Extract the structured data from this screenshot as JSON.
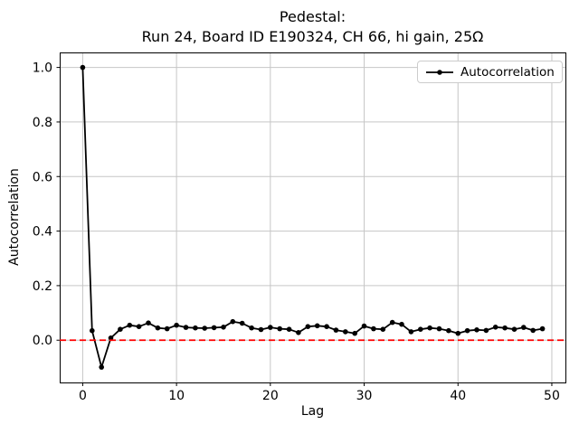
{
  "title": {
    "line1": "Pedestal:",
    "line2": "Run 24, Board ID E190324, CH 66, hi gain, 25Ω"
  },
  "colors": {
    "grid": "#c6c6c6",
    "axis": "#000000",
    "series": "#000000",
    "reference": "#ff0000",
    "legend_border": "#cccccc",
    "background": "#ffffff"
  },
  "chart_data": {
    "type": "line",
    "title": "Pedestal:\nRun 24, Board ID E190324, CH 66, hi gain, 25Ω",
    "xlabel": "Lag",
    "ylabel": "Autocorrelation",
    "xlim": [
      -2.45,
      51.45
    ],
    "ylim": [
      -0.155,
      1.055
    ],
    "x_ticks": [
      0,
      10,
      20,
      30,
      40,
      50
    ],
    "y_ticks": [
      0.0,
      0.2,
      0.4,
      0.6,
      0.8,
      1.0
    ],
    "grid": true,
    "legend": {
      "position": "upper right",
      "entries": [
        "Autocorrelation"
      ]
    },
    "reference_line": {
      "y": 0.0,
      "color": "#ff0000",
      "style": "dashed"
    },
    "series": [
      {
        "name": "Autocorrelation",
        "color": "#000000",
        "marker": "dot",
        "x": [
          0,
          1,
          2,
          3,
          4,
          5,
          6,
          7,
          8,
          9,
          10,
          11,
          12,
          13,
          14,
          15,
          16,
          17,
          18,
          19,
          20,
          21,
          22,
          23,
          24,
          25,
          26,
          27,
          28,
          29,
          30,
          31,
          32,
          33,
          34,
          35,
          36,
          37,
          38,
          39,
          40,
          41,
          42,
          43,
          44,
          45,
          46,
          47,
          48,
          49
        ],
        "values": [
          1.0,
          0.035,
          -0.099,
          0.008,
          0.04,
          0.055,
          0.05,
          0.063,
          0.045,
          0.042,
          0.055,
          0.047,
          0.045,
          0.044,
          0.046,
          0.048,
          0.068,
          0.062,
          0.045,
          0.039,
          0.047,
          0.042,
          0.04,
          0.028,
          0.05,
          0.053,
          0.05,
          0.037,
          0.031,
          0.025,
          0.052,
          0.042,
          0.04,
          0.065,
          0.058,
          0.031,
          0.04,
          0.045,
          0.042,
          0.035,
          0.025,
          0.035,
          0.038,
          0.036,
          0.048,
          0.045,
          0.04,
          0.047,
          0.036,
          0.042
        ]
      }
    ]
  }
}
